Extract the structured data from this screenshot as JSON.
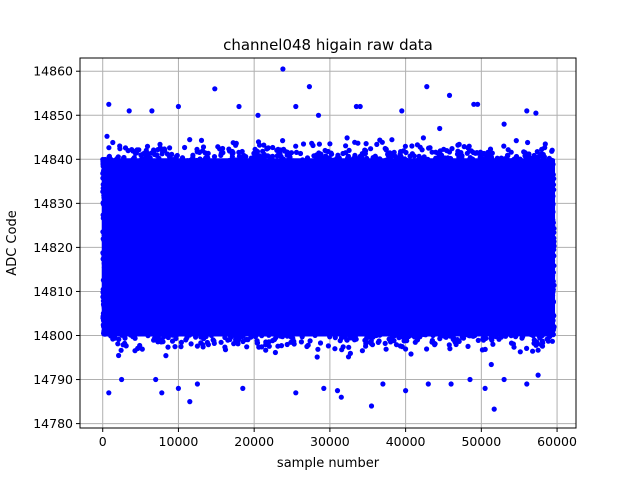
{
  "chart_data": {
    "type": "scatter",
    "title": "channel048 higain raw data",
    "xlabel": "sample number",
    "ylabel": "ADC Code",
    "xlim": [
      -3000,
      62500
    ],
    "ylim": [
      14779,
      14863
    ],
    "xticks": [
      0,
      10000,
      20000,
      30000,
      40000,
      50000,
      60000
    ],
    "yticks": [
      14780,
      14790,
      14800,
      14810,
      14820,
      14830,
      14840,
      14850,
      14860
    ],
    "grid": true,
    "marker_color": "#0000ff",
    "series": [
      {
        "n_samples": 59600,
        "band": {
          "x_range": [
            0,
            59600
          ],
          "y_range": [
            14800,
            14840
          ]
        },
        "outliers": [
          [
            23800,
            14860.5
          ],
          [
            27300,
            14856.5
          ],
          [
            42800,
            14856.5
          ],
          [
            14800,
            14856
          ],
          [
            45800,
            14854.5
          ],
          [
            800,
            14852.5
          ],
          [
            10000,
            14852
          ],
          [
            18000,
            14852
          ],
          [
            25500,
            14852
          ],
          [
            33500,
            14852
          ],
          [
            34000,
            14852
          ],
          [
            49000,
            14852.5
          ],
          [
            49500,
            14852.5
          ],
          [
            56000,
            14851
          ],
          [
            57200,
            14850.5
          ],
          [
            3500,
            14851
          ],
          [
            6500,
            14851
          ],
          [
            28500,
            14850
          ],
          [
            20500,
            14850
          ],
          [
            39500,
            14851
          ],
          [
            53000,
            14848
          ],
          [
            44500,
            14847
          ],
          [
            7000,
            14790
          ],
          [
            800,
            14787
          ],
          [
            2500,
            14790
          ],
          [
            7800,
            14787
          ],
          [
            10000,
            14788
          ],
          [
            11500,
            14785
          ],
          [
            12500,
            14789
          ],
          [
            18500,
            14788
          ],
          [
            25500,
            14787
          ],
          [
            29200,
            14788
          ],
          [
            31000,
            14787.5
          ],
          [
            31500,
            14786
          ],
          [
            35500,
            14784
          ],
          [
            37000,
            14789
          ],
          [
            40000,
            14787.5
          ],
          [
            43000,
            14789
          ],
          [
            46000,
            14789
          ],
          [
            48500,
            14790
          ],
          [
            50500,
            14788
          ],
          [
            51700,
            14783.3
          ],
          [
            53000,
            14790
          ],
          [
            56000,
            14789
          ],
          [
            57500,
            14791
          ]
        ]
      }
    ]
  }
}
